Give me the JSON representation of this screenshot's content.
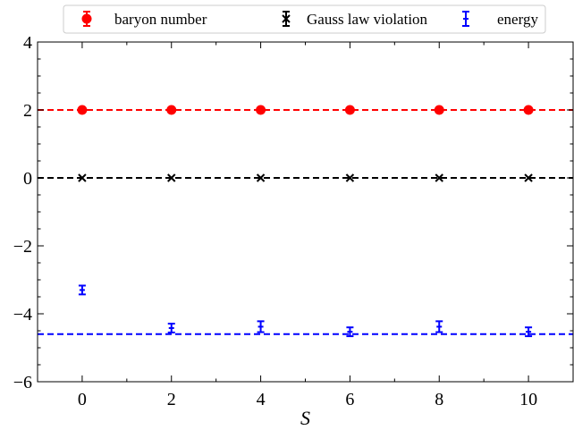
{
  "chart_data": {
    "type": "scatter",
    "title": "",
    "xlabel": "S",
    "ylabel": "",
    "xlim": [
      -1,
      11
    ],
    "ylim": [
      -6,
      4
    ],
    "x_ticks": [
      0,
      2,
      4,
      6,
      8,
      10
    ],
    "y_ticks": [
      -6,
      -4,
      -2,
      0,
      2,
      4
    ],
    "y_tick_labels": [
      "−6",
      "−4",
      "−2",
      "0",
      "2",
      "4"
    ],
    "grid": false,
    "legend_position": "top",
    "series": [
      {
        "name": "baryon number",
        "color": "#ff0000",
        "marker": "circle",
        "x": [
          0,
          2,
          4,
          6,
          8,
          10
        ],
        "y": [
          2,
          2,
          2,
          2,
          2,
          2
        ],
        "reference_line": 2
      },
      {
        "name": "Gauss law violation",
        "color": "#000000",
        "marker": "x",
        "x": [
          0,
          2,
          4,
          6,
          8,
          10
        ],
        "y": [
          0,
          0,
          0,
          0,
          0,
          0
        ],
        "reference_line": 0
      },
      {
        "name": "energy",
        "color": "#0000ff",
        "marker": "errorbar",
        "x": [
          0,
          2,
          4,
          6,
          8,
          10
        ],
        "y": [
          -3.3,
          -4.42,
          -4.38,
          -4.53,
          -4.38,
          -4.53
        ],
        "yerr": [
          0.13,
          0.13,
          0.16,
          0.13,
          0.16,
          0.13
        ],
        "reference_line": -4.6
      }
    ]
  }
}
